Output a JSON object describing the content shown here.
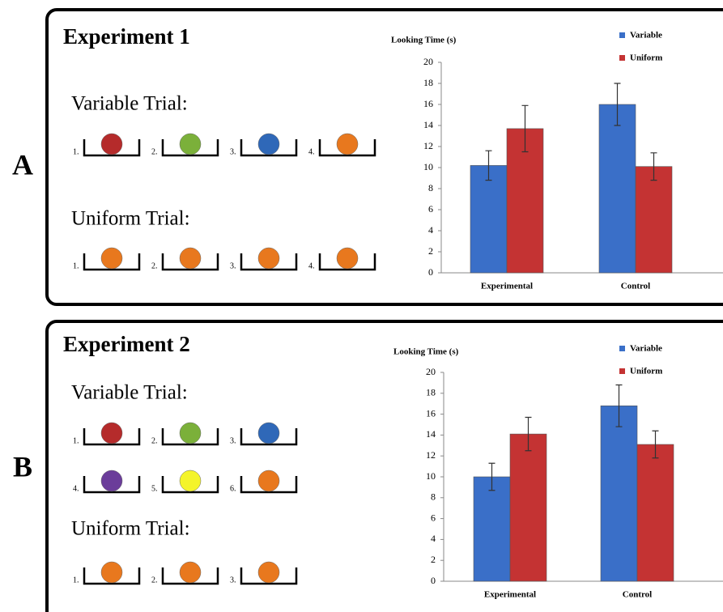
{
  "panels": [
    {
      "letter": "A",
      "title": "Experiment 1",
      "trials": [
        {
          "label": "Variable Trial:",
          "items": [
            {
              "number": "1.",
              "color": "#b52b2b"
            },
            {
              "number": "2.",
              "color": "#7bb03a"
            },
            {
              "number": "3.",
              "color": "#2f68b8"
            },
            {
              "number": "4.",
              "color": "#e8781e"
            }
          ]
        },
        {
          "label": "Uniform Trial:",
          "items": [
            {
              "number": "1.",
              "color": "#e8781e"
            },
            {
              "number": "2.",
              "color": "#e8781e"
            },
            {
              "number": "3.",
              "color": "#e8781e"
            },
            {
              "number": "4.",
              "color": "#e8781e"
            }
          ]
        }
      ]
    },
    {
      "letter": "B",
      "title": "Experiment 2",
      "trials": [
        {
          "label": "Variable Trial:",
          "items": [
            {
              "number": "1.",
              "color": "#b52b2b"
            },
            {
              "number": "2.",
              "color": "#7bb03a"
            },
            {
              "number": "3.",
              "color": "#2f68b8"
            },
            {
              "number": "4.",
              "color": "#6b3d9a"
            },
            {
              "number": "5.",
              "color": "#f4f42a"
            },
            {
              "number": "6.",
              "color": "#e8781e"
            }
          ]
        },
        {
          "label": "Uniform Trial:",
          "items": [
            {
              "number": "1.",
              "color": "#e8781e"
            },
            {
              "number": "2.",
              "color": "#e8781e"
            },
            {
              "number": "3.",
              "color": "#e8781e"
            }
          ]
        }
      ]
    }
  ],
  "chart_data": [
    {
      "type": "bar",
      "y_label": "Looking Time (s)",
      "categories": [
        "Experimental",
        "Control"
      ],
      "series": [
        {
          "name": "Variable",
          "color": "#3a6fc8",
          "values": [
            10.2,
            16
          ],
          "errors": [
            1.4,
            2.0
          ]
        },
        {
          "name": "Uniform",
          "color": "#c43333",
          "values": [
            13.7,
            10.1
          ],
          "errors": [
            2.2,
            1.3
          ]
        }
      ],
      "ylim": [
        0,
        20
      ],
      "yticks": [
        0,
        2,
        4,
        6,
        8,
        10,
        12,
        14,
        16,
        18,
        20
      ],
      "legend": "top-right"
    },
    {
      "type": "bar",
      "y_label": "Looking Time (s)",
      "categories": [
        "Experimental",
        "Control"
      ],
      "series": [
        {
          "name": "Variable",
          "color": "#3a6fc8",
          "values": [
            10,
            16.8
          ],
          "errors": [
            1.3,
            2.0
          ]
        },
        {
          "name": "Uniform",
          "color": "#c43333",
          "values": [
            14.1,
            13.1
          ],
          "errors": [
            1.6,
            1.3
          ]
        }
      ],
      "ylim": [
        0,
        20
      ],
      "yticks": [
        0,
        2,
        4,
        6,
        8,
        10,
        12,
        14,
        16,
        18,
        20
      ],
      "legend": "top-right"
    }
  ]
}
